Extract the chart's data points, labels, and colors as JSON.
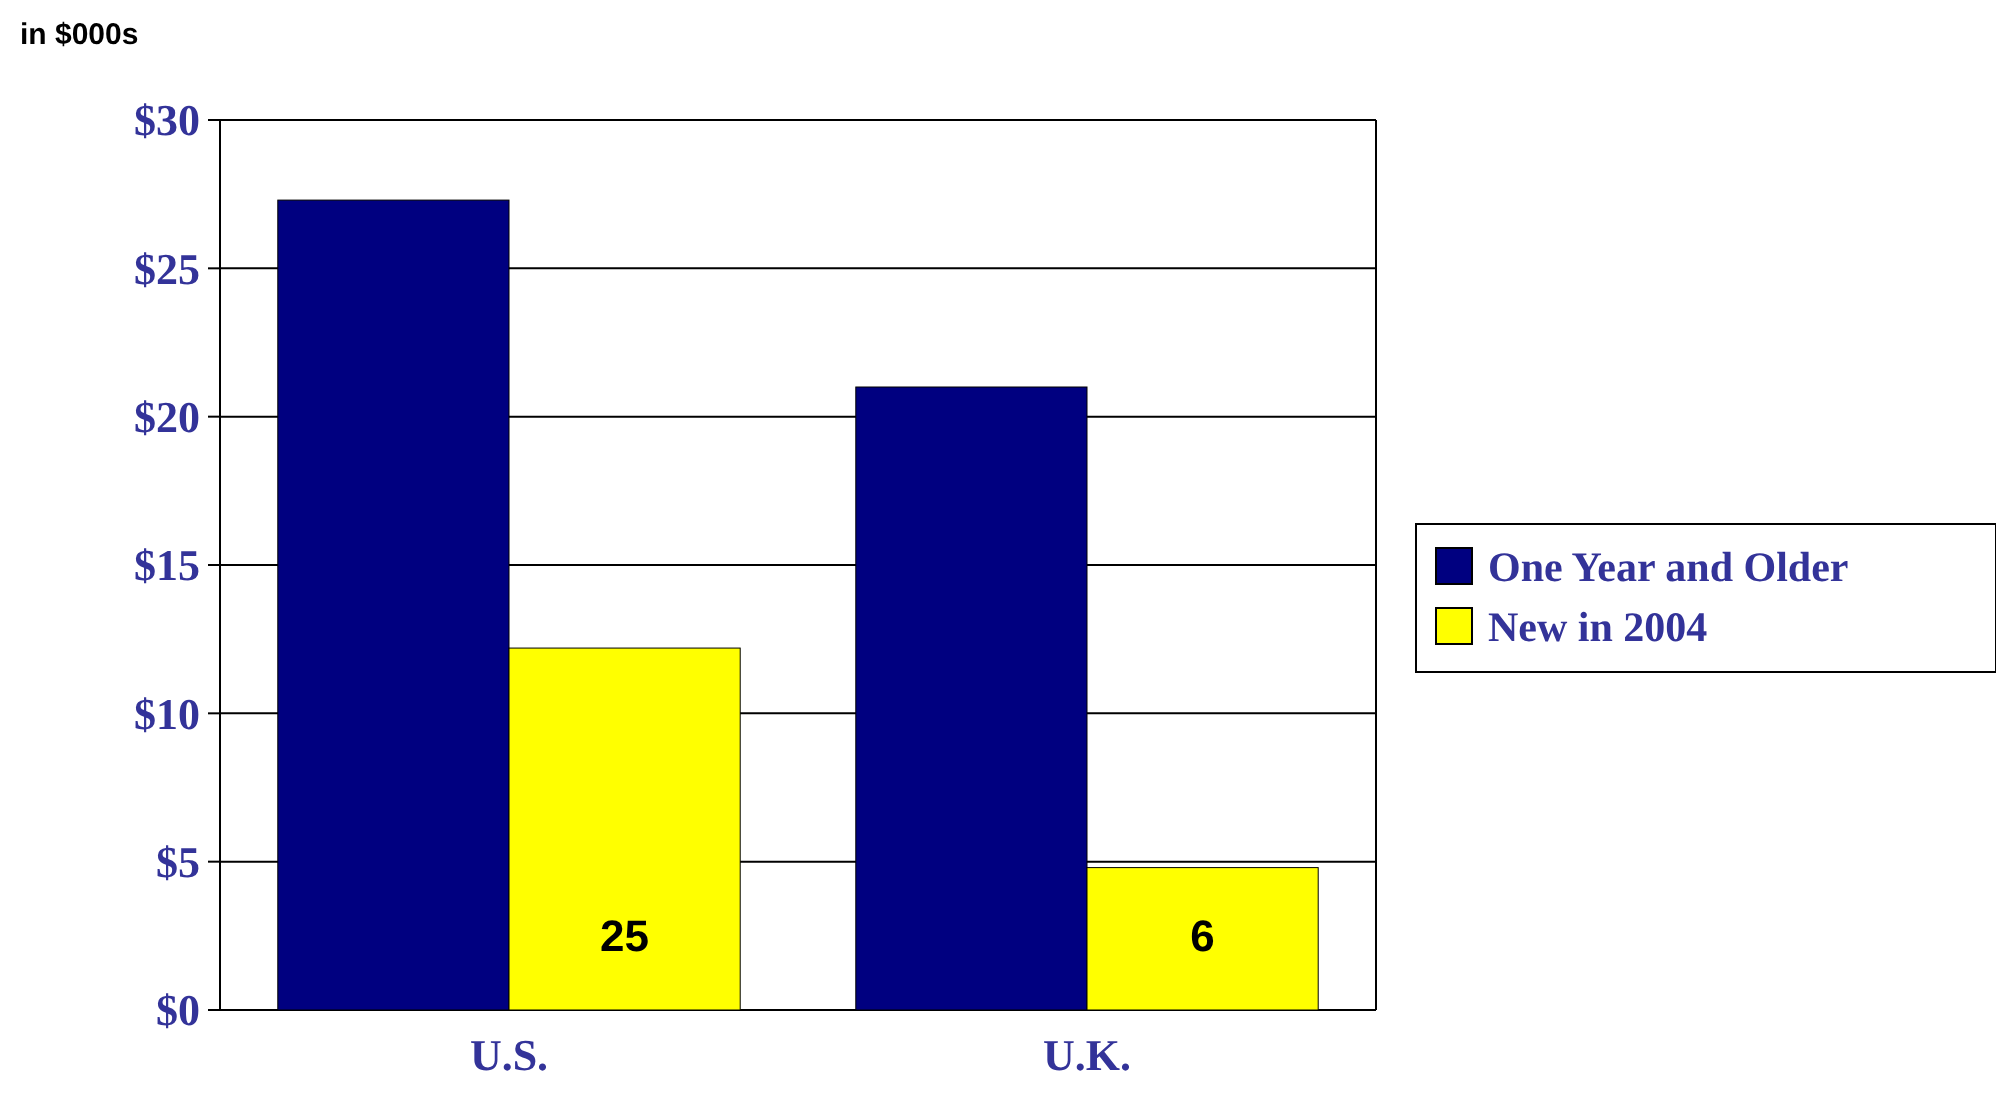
{
  "chart_data": {
    "type": "bar",
    "ylabel": "in $000s",
    "categories": [
      "U.S.",
      "U.K."
    ],
    "series": [
      {
        "name": "One Year and Older",
        "color": "#000080",
        "values": [
          27.3,
          21
        ]
      },
      {
        "name": "New in 2004",
        "color": "#ffff00",
        "values": [
          12.2,
          4.8
        ]
      }
    ],
    "ylim": [
      0,
      30
    ],
    "yticks": [
      {
        "value": 0,
        "label": "$0"
      },
      {
        "value": 5,
        "label": "$5"
      },
      {
        "value": 10,
        "label": "$10"
      },
      {
        "value": 15,
        "label": "$15"
      },
      {
        "value": 20,
        "label": "$20"
      },
      {
        "value": 25,
        "label": "$25"
      },
      {
        "value": 30,
        "label": "$30"
      }
    ],
    "grid": "y",
    "legend": "right",
    "annotations": [
      {
        "text": "25",
        "x": "U.S.",
        "y": 2.5
      },
      {
        "text": "6",
        "x": "U.K.",
        "y": 2.5
      }
    ]
  }
}
